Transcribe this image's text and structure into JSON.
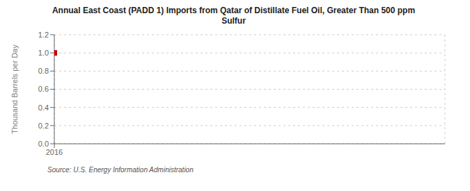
{
  "chart_data": {
    "type": "scatter",
    "title": "Annual East Coast (PADD 1) Imports from Qatar of Distillate Fuel Oil, Greater Than 500 ppm\nSulfur",
    "y_label": "Thousand Barrels per Day",
    "annotations": [
      "Source: U.S. Energy Information Administration"
    ],
    "x": [
      2016
    ],
    "values": [
      1.0
    ],
    "color": "#cc0000",
    "marker": "square",
    "xlim": [
      2016,
      2026
    ],
    "ylim": [
      0,
      1.2
    ],
    "xticks": [
      2016
    ],
    "yticks": [
      {
        "value": 0,
        "label": "0.0"
      },
      0.2,
      0.4,
      0.6,
      0.8,
      {
        "value": 1,
        "label": "1.0"
      },
      1.2
    ],
    "grid": true
  }
}
